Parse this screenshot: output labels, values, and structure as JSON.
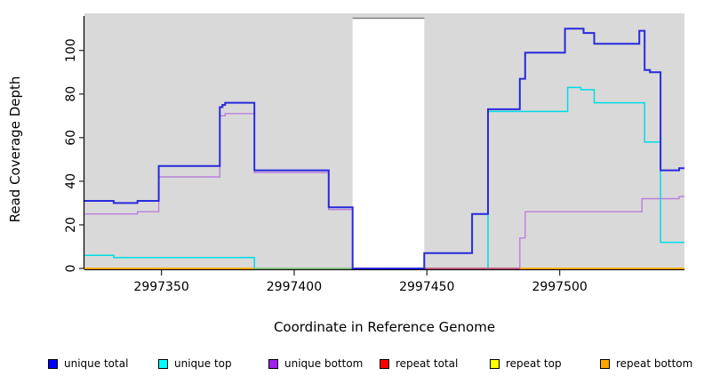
{
  "chart_data": {
    "type": "line",
    "step": true,
    "title": "",
    "xlabel": "Coordinate in Reference Genome",
    "ylabel": "Read Coverage Depth",
    "xlim": [
      2997321,
      2997547
    ],
    "ylim": [
      0,
      117
    ],
    "x_ticks": [
      2997350,
      2997400,
      2997450,
      2997500
    ],
    "y_ticks": [
      0,
      20,
      40,
      60,
      80,
      100
    ],
    "grid": false,
    "panel_bg": "#d9d9d9",
    "gap_region": {
      "x0": 2997422,
      "x1": 2997449
    },
    "series": [
      {
        "name": "repeat total",
        "color": "#ff0000",
        "lw": 1.8,
        "points": [
          [
            2997321,
            0
          ],
          [
            2997547,
            0
          ]
        ]
      },
      {
        "name": "repeat top",
        "color": "#ffff00",
        "lw": 1.8,
        "points": [
          [
            2997321,
            0
          ],
          [
            2997547,
            0
          ]
        ]
      },
      {
        "name": "repeat bottom",
        "color": "#ffa500",
        "lw": 1.8,
        "points": [
          [
            2997321,
            0
          ],
          [
            2997547,
            0
          ]
        ]
      },
      {
        "name": "unique bottom",
        "color": "#b97fdc",
        "lw": 1.4,
        "points": [
          [
            2997321,
            25
          ],
          [
            2997341,
            26
          ],
          [
            2997349,
            42
          ],
          [
            2997372,
            70
          ],
          [
            2997374,
            71
          ],
          [
            2997385,
            44
          ],
          [
            2997413,
            27
          ],
          [
            2997422,
            0
          ],
          [
            2997485,
            14
          ],
          [
            2997487,
            26
          ],
          [
            2997531,
            32
          ],
          [
            2997545,
            33
          ],
          [
            2997547,
            33
          ]
        ]
      },
      {
        "name": "unique top",
        "color": "#00dce8",
        "lw": 1.5,
        "points": [
          [
            2997321,
            6
          ],
          [
            2997332,
            5
          ],
          [
            2997385,
            0
          ],
          [
            2997473,
            72
          ],
          [
            2997503,
            83
          ],
          [
            2997508,
            82
          ],
          [
            2997513,
            76
          ],
          [
            2997532,
            58
          ],
          [
            2997538,
            12
          ],
          [
            2997547,
            12
          ]
        ]
      },
      {
        "name": "unique total",
        "color": "#2929dd",
        "lw": 2,
        "points": [
          [
            2997321,
            31
          ],
          [
            2997332,
            30
          ],
          [
            2997341,
            31
          ],
          [
            2997349,
            47
          ],
          [
            2997372,
            74
          ],
          [
            2997373,
            75
          ],
          [
            2997374,
            76
          ],
          [
            2997385,
            45
          ],
          [
            2997413,
            28
          ],
          [
            2997422,
            0
          ],
          [
            2997449,
            7
          ],
          [
            2997467,
            25
          ],
          [
            2997473,
            73
          ],
          [
            2997485,
            87
          ],
          [
            2997487,
            99
          ],
          [
            2997502,
            110
          ],
          [
            2997509,
            108
          ],
          [
            2997513,
            103
          ],
          [
            2997530,
            109
          ],
          [
            2997532,
            91
          ],
          [
            2997534,
            90
          ],
          [
            2997538,
            45
          ],
          [
            2997545,
            46
          ],
          [
            2997547,
            46
          ]
        ]
      }
    ],
    "blend_segments": [
      {
        "color": "#84bf84",
        "x0": 2997385,
        "x1": 2997422,
        "y": 0
      },
      {
        "color": "#c15e7e",
        "x0": 2997449,
        "x1": 2997485,
        "y": 0
      }
    ],
    "legend": [
      {
        "label": "unique total",
        "color": "#0000ff"
      },
      {
        "label": "unique top",
        "color": "#00ffff"
      },
      {
        "label": "unique bottom",
        "color": "#a020f0"
      },
      {
        "label": "repeat total",
        "color": "#ff0000"
      },
      {
        "label": "repeat top",
        "color": "#ffff00"
      },
      {
        "label": "repeat bottom",
        "color": "#ffa500"
      }
    ],
    "legend_position": "bottom-horizontal"
  }
}
